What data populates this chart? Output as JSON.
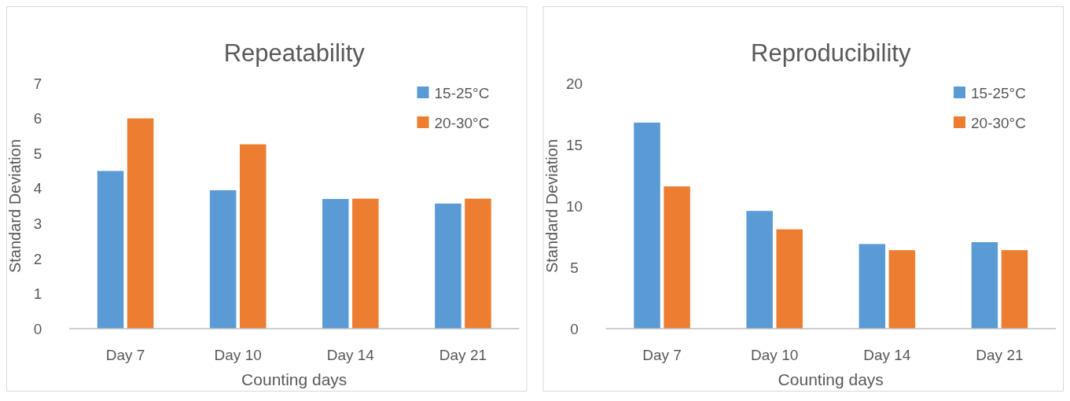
{
  "chart_data": [
    {
      "type": "bar",
      "title": "Repeatability",
      "xlabel": "Counting days",
      "ylabel": "Standard Deviation",
      "categories": [
        "Day 7",
        "Day 10",
        "Day 14",
        "Day 21"
      ],
      "series": [
        {
          "name": "15-25°C",
          "color": "#5b9bd5",
          "values": [
            4.5,
            3.95,
            3.7,
            3.57
          ]
        },
        {
          "name": "20-30°C",
          "color": "#ed7d31",
          "values": [
            6.0,
            5.26,
            3.71,
            3.71
          ]
        }
      ],
      "ylim": [
        0,
        7
      ],
      "yticks": [
        0,
        1,
        2,
        3,
        4,
        5,
        6,
        7
      ],
      "legend": "top right",
      "grid": false
    },
    {
      "type": "bar",
      "title": "Reproducibility",
      "xlabel": "Counting days",
      "ylabel": "Standard Deviation",
      "categories": [
        "Day 7",
        "Day 10",
        "Day 14",
        "Day 21"
      ],
      "series": [
        {
          "name": "15-25°C",
          "color": "#5b9bd5",
          "values": [
            16.8,
            9.6,
            6.9,
            7.05
          ]
        },
        {
          "name": "20-30°C",
          "color": "#ed7d31",
          "values": [
            11.6,
            8.1,
            6.4,
            6.4
          ]
        }
      ],
      "ylim": [
        0,
        20
      ],
      "yticks": [
        0,
        5,
        10,
        15,
        20
      ],
      "legend": "top right",
      "grid": false
    }
  ]
}
